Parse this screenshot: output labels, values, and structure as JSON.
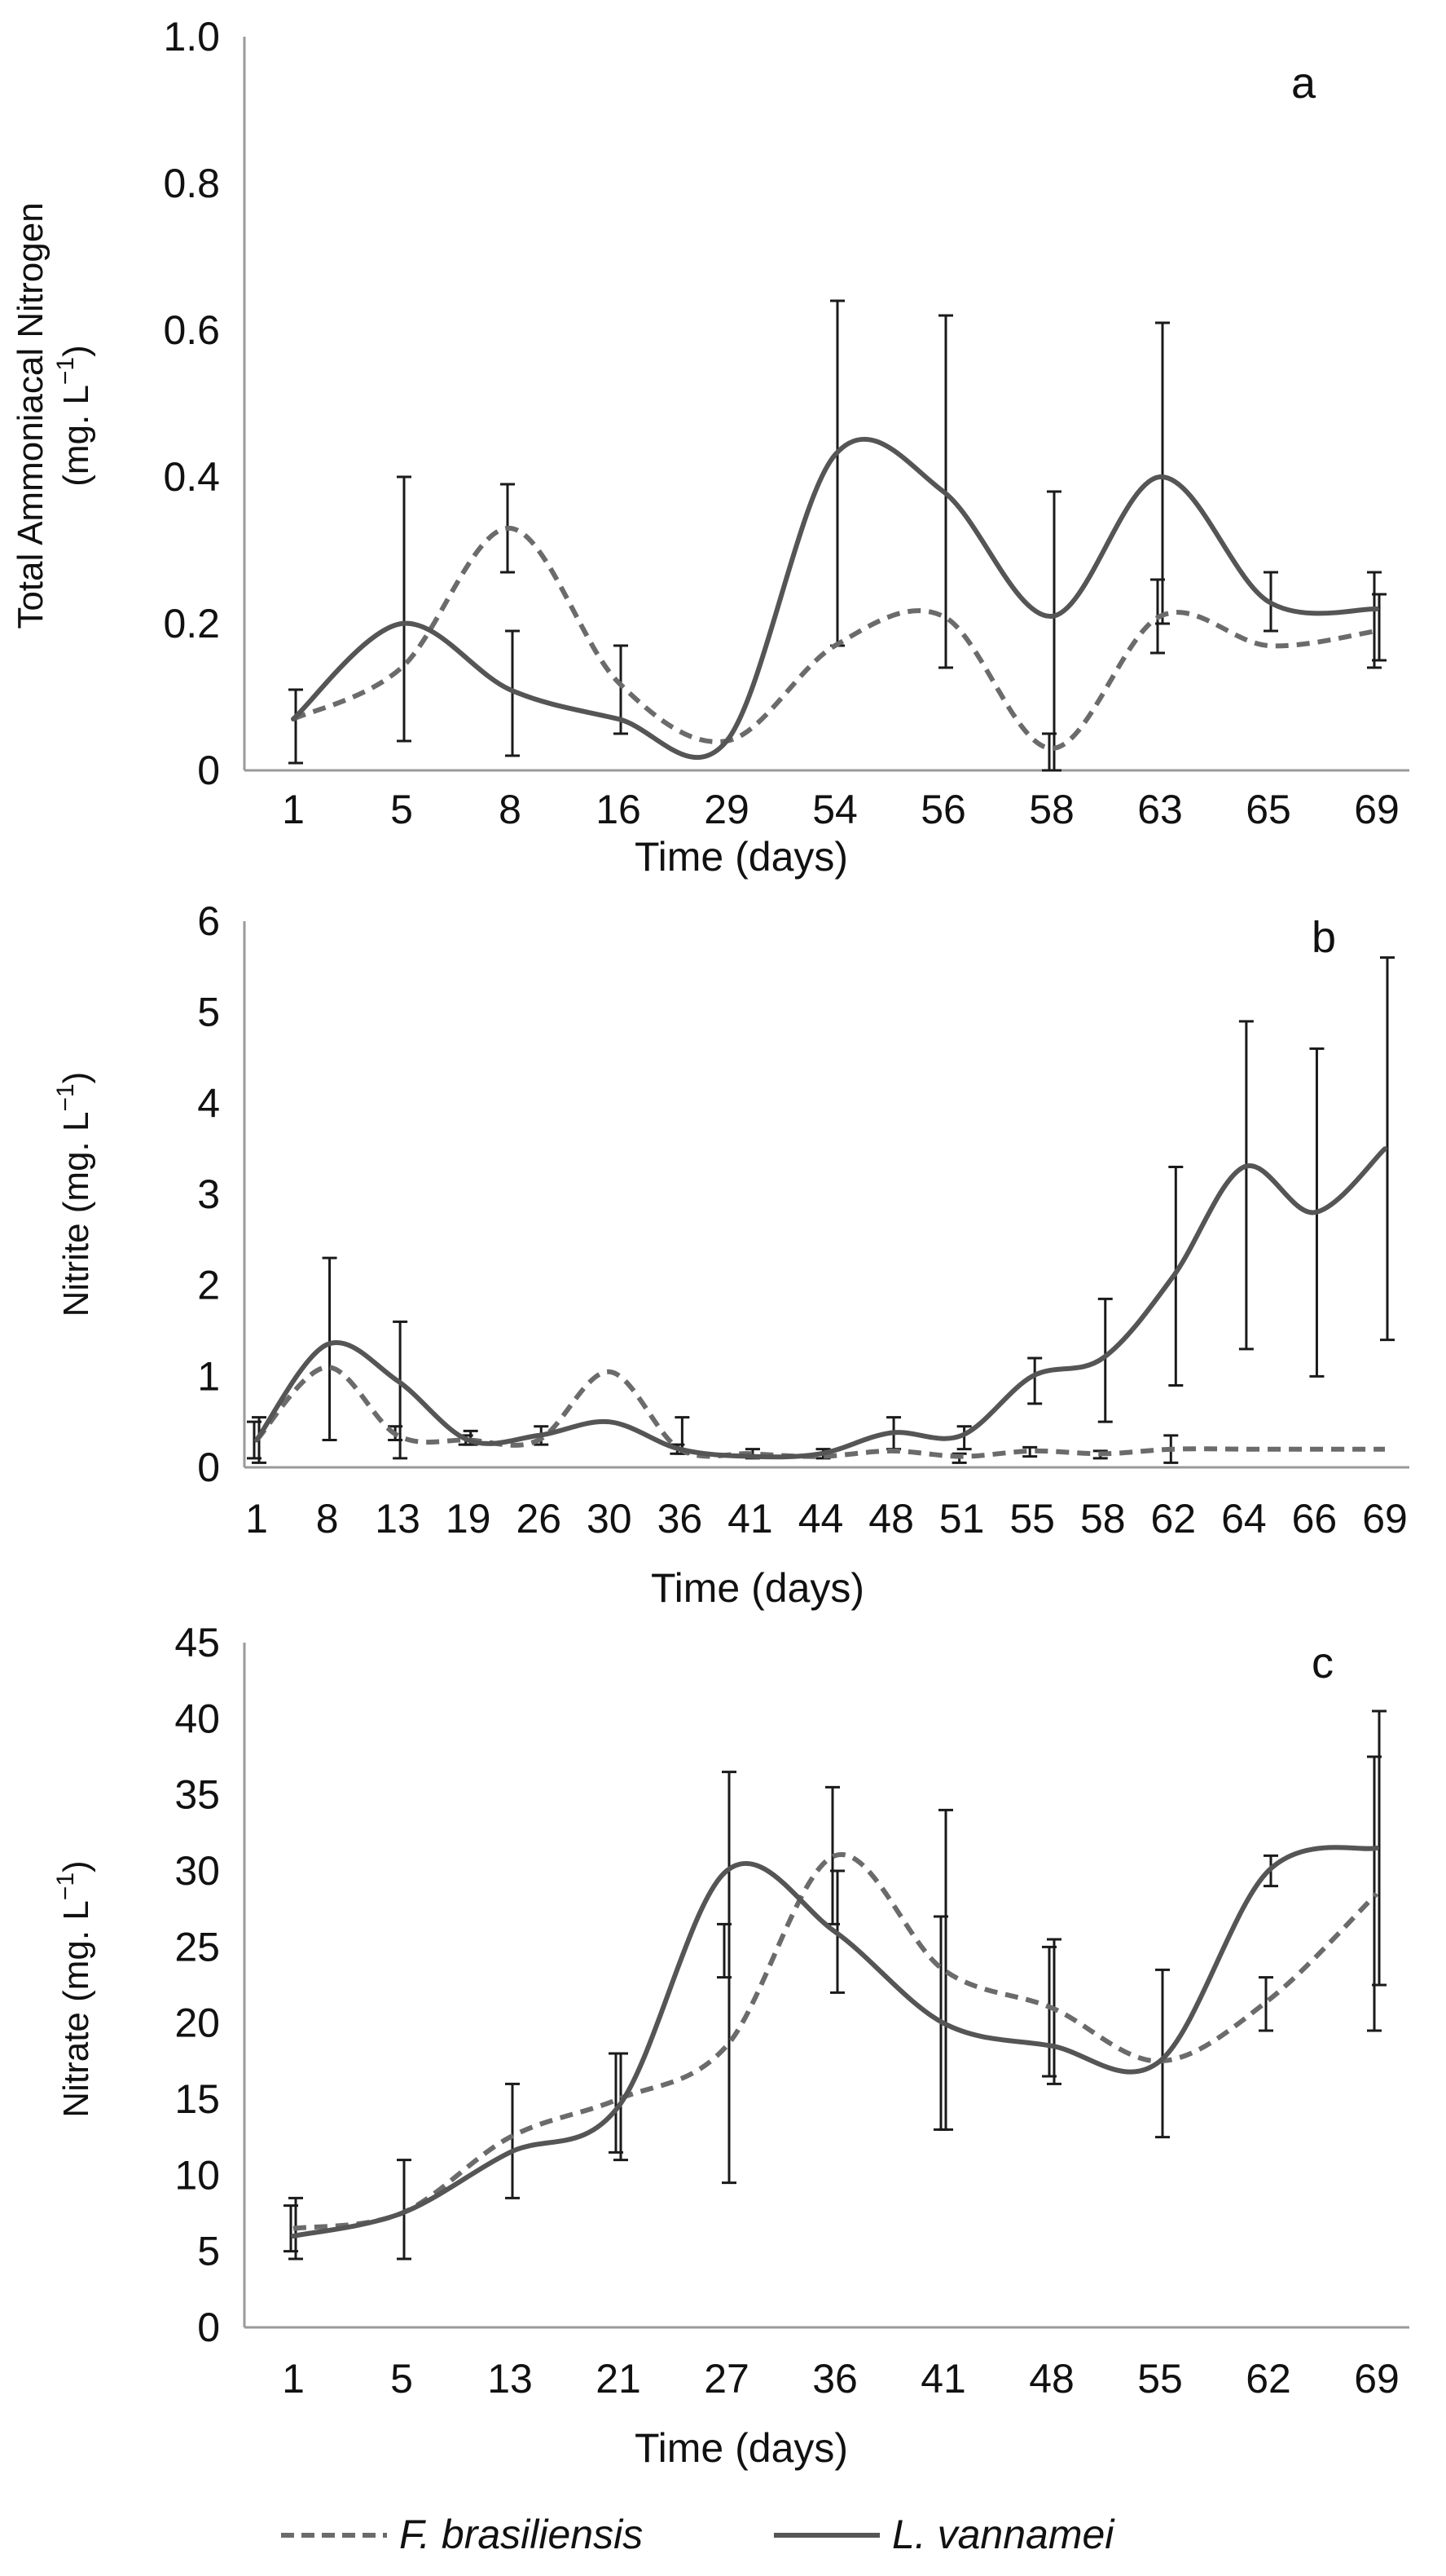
{
  "figure": {
    "legend": {
      "series_a_name": "F. brasiliensis",
      "series_b_name": "L. vannamei"
    }
  },
  "chart_data": [
    {
      "type": "line",
      "panel_label": "a",
      "title": "",
      "xlabel": "Time (days)",
      "ylabel_line1": "Total Ammoniacal Nitrogen",
      "ylabel_line2": "(mg. L",
      "ylabel_sup": "−1",
      "ylabel_close": ")",
      "ylim": [
        0,
        1
      ],
      "yticks": [
        "0",
        "0.2",
        "0.4",
        "0.6",
        "0.8",
        "1.0"
      ],
      "categories": [
        "1",
        "5",
        "8",
        "16",
        "29",
        "54",
        "56",
        "58",
        "63",
        "65",
        "69"
      ],
      "grid": false,
      "series": [
        {
          "name": "F. brasiliensis",
          "style": "dashed",
          "color": "#6b6b6b",
          "values": [
            0.07,
            0.14,
            0.33,
            0.12,
            0.04,
            0.17,
            0.21,
            0.03,
            0.21,
            0.17,
            0.19
          ],
          "err_low": [
            null,
            null,
            0.27,
            null,
            null,
            null,
            null,
            0.0,
            0.16,
            null,
            0.14
          ],
          "err_high": [
            null,
            null,
            0.39,
            null,
            null,
            null,
            null,
            0.05,
            0.26,
            null,
            0.27
          ]
        },
        {
          "name": "L. vannamei",
          "style": "solid",
          "color": "#555555",
          "values": [
            0.07,
            0.2,
            0.11,
            0.07,
            0.04,
            0.43,
            0.38,
            0.21,
            0.4,
            0.23,
            0.22
          ],
          "err_low": [
            0.01,
            0.04,
            0.02,
            0.05,
            null,
            0.17,
            0.14,
            0.0,
            0.2,
            0.19,
            0.15
          ],
          "err_high": [
            0.11,
            0.4,
            0.19,
            0.17,
            null,
            0.64,
            0.62,
            0.38,
            0.61,
            0.27,
            0.24
          ]
        }
      ]
    },
    {
      "type": "line",
      "panel_label": "b",
      "title": "",
      "xlabel": "Time (days)",
      "ylabel_line1": "",
      "ylabel_line2": "Nitrite (mg. L",
      "ylabel_sup": "−1",
      "ylabel_close": ")",
      "ylim": [
        0,
        6
      ],
      "yticks": [
        "0",
        "1",
        "2",
        "3",
        "4",
        "5",
        "6"
      ],
      "categories": [
        "1",
        "8",
        "13",
        "19",
        "26",
        "30",
        "36",
        "41",
        "44",
        "48",
        "51",
        "55",
        "58",
        "62",
        "64",
        "66",
        "69"
      ],
      "grid": false,
      "series": [
        {
          "name": "F. brasiliensis",
          "style": "dashed",
          "color": "#6b6b6b",
          "values": [
            0.3,
            1.1,
            0.35,
            0.3,
            0.3,
            1.05,
            0.2,
            0.15,
            0.12,
            0.18,
            0.12,
            0.18,
            0.15,
            0.2,
            0.2,
            0.2,
            0.2
          ],
          "err_low": [
            0.1,
            null,
            0.3,
            0.25,
            null,
            null,
            0.15,
            null,
            null,
            null,
            0.05,
            0.12,
            0.1,
            0.05,
            null,
            null,
            null
          ],
          "err_high": [
            0.5,
            null,
            0.45,
            0.35,
            null,
            null,
            0.25,
            null,
            null,
            null,
            0.15,
            0.22,
            0.18,
            0.35,
            null,
            null,
            null
          ]
        },
        {
          "name": "L. vannamei",
          "style": "solid",
          "color": "#555555",
          "values": [
            0.3,
            1.35,
            0.95,
            0.3,
            0.35,
            0.5,
            0.2,
            0.12,
            0.15,
            0.38,
            0.35,
            1.0,
            1.2,
            2.1,
            3.3,
            2.8,
            3.5
          ],
          "err_low": [
            0.05,
            0.3,
            0.1,
            0.25,
            0.25,
            null,
            0.15,
            0.1,
            0.1,
            0.2,
            0.2,
            0.7,
            0.5,
            0.9,
            1.3,
            1.0,
            1.4
          ],
          "err_high": [
            0.55,
            2.3,
            1.6,
            0.4,
            0.45,
            null,
            0.55,
            0.2,
            0.2,
            0.55,
            0.45,
            1.2,
            1.85,
            3.3,
            4.9,
            4.6,
            5.6
          ]
        }
      ]
    },
    {
      "type": "line",
      "panel_label": "c",
      "title": "",
      "xlabel": "Time (days)",
      "ylabel_line1": "",
      "ylabel_line2": "Nitrate (mg. L",
      "ylabel_sup": "−1",
      "ylabel_close": ")",
      "ylim": [
        0,
        45
      ],
      "yticks": [
        "0",
        "5",
        "10",
        "15",
        "20",
        "25",
        "30",
        "35",
        "40",
        "45"
      ],
      "categories": [
        "1",
        "5",
        "13",
        "21",
        "27",
        "36",
        "41",
        "48",
        "55",
        "62",
        "69"
      ],
      "grid": false,
      "series": [
        {
          "name": "F. brasiliensis",
          "style": "dashed",
          "color": "#6b6b6b",
          "values": [
            6.5,
            7.5,
            12.5,
            15,
            18.5,
            31,
            23.5,
            21,
            17.5,
            21.5,
            28.5
          ],
          "err_low": [
            5.0,
            null,
            null,
            11.5,
            23,
            26.5,
            13,
            16.5,
            null,
            19.5,
            19.5
          ],
          "err_high": [
            8.0,
            null,
            null,
            18,
            26.5,
            35.5,
            27,
            25,
            null,
            23,
            37.5
          ]
        },
        {
          "name": "L. vannamei",
          "style": "solid",
          "color": "#555555",
          "values": [
            6,
            7.5,
            11.5,
            14.5,
            30,
            26,
            20,
            18.5,
            17.5,
            30,
            31.5
          ],
          "err_low": [
            4.5,
            4.5,
            8.5,
            11,
            9.5,
            22,
            13,
            16,
            12.5,
            29,
            22.5
          ],
          "err_high": [
            8.5,
            11,
            16,
            18,
            36.5,
            30,
            34,
            25.5,
            23.5,
            31,
            40.5
          ]
        }
      ]
    }
  ]
}
